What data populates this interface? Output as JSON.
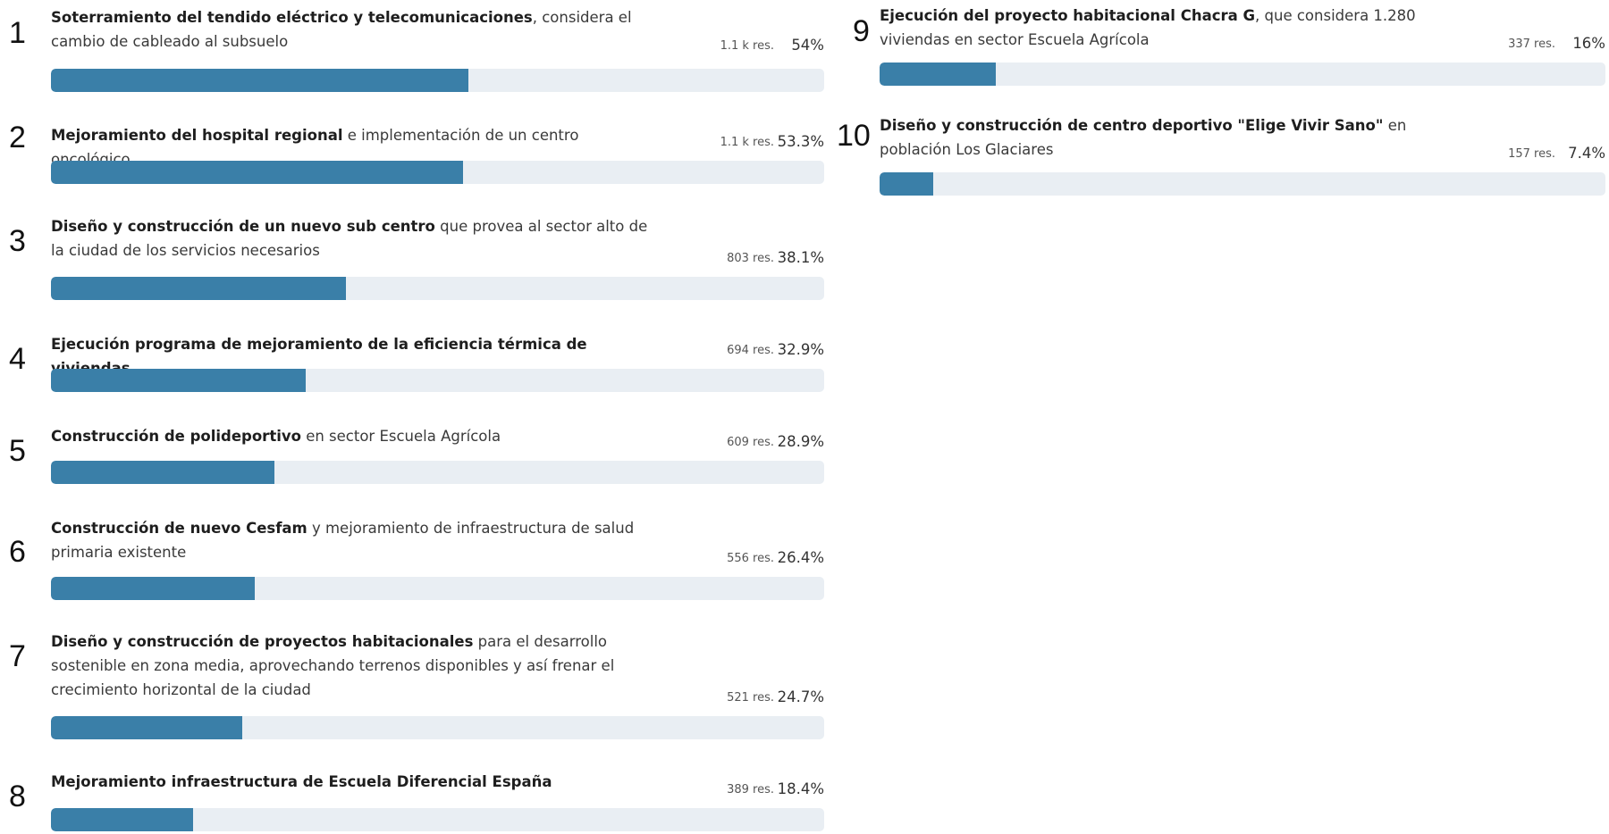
{
  "chart_data": {
    "type": "bar",
    "items": [
      {
        "rank": "1",
        "bold": "Soterramiento del tendido eléctrico y telecomunicaciones",
        "rest": ", considera el cambio de cableado al subsuelo",
        "responses": "1.1 k res.",
        "percent_label": "54%",
        "value": 54
      },
      {
        "rank": "2",
        "bold": "Mejoramiento del hospital regional",
        "rest": " e implementación de un centro oncológico",
        "responses": "1.1 k res.",
        "percent_label": "53.3%",
        "value": 53.3
      },
      {
        "rank": "3",
        "bold": "Diseño y construcción de un nuevo sub centro",
        "rest": " que provea al sector alto de la ciudad de los servicios necesarios",
        "responses": "803 res.",
        "percent_label": "38.1%",
        "value": 38.1
      },
      {
        "rank": "4",
        "bold": "Ejecución programa de mejoramiento de la eficiencia térmica de viviendas",
        "rest": "",
        "responses": "694 res.",
        "percent_label": "32.9%",
        "value": 32.9
      },
      {
        "rank": "5",
        "bold": "Construcción de polideportivo",
        "rest": " en sector Escuela Agrícola",
        "responses": "609 res.",
        "percent_label": "28.9%",
        "value": 28.9
      },
      {
        "rank": "6",
        "bold": "Construcción de nuevo Cesfam",
        "rest": " y mejoramiento de infraestructura de salud primaria existente",
        "responses": "556 res.",
        "percent_label": "26.4%",
        "value": 26.4
      },
      {
        "rank": "7",
        "bold": "Diseño y construcción de proyectos habitacionales",
        "rest": " para el desarrollo sostenible en zona media, aprovechando terrenos disponibles y así frenar el crecimiento horizontal de la ciudad",
        "responses": "521 res.",
        "percent_label": "24.7%",
        "value": 24.7
      },
      {
        "rank": "8",
        "bold": "Mejoramiento infraestructura de Escuela Diferencial España",
        "rest": "",
        "responses": "389 res.",
        "percent_label": "18.4%",
        "value": 18.4
      },
      {
        "rank": "9",
        "bold": "Ejecución del proyecto habitacional Chacra G",
        "rest": ", que considera 1.280 viviendas en sector Escuela Agrícola",
        "responses": "337 res.",
        "percent_label": "16%",
        "value": 16
      },
      {
        "rank": "10",
        "bold": "Diseño y construcción de centro deportivo \"Elige Vivir Sano\"",
        "rest": " en población Los Glaciares",
        "responses": "157 res.",
        "percent_label": "7.4%",
        "value": 7.4
      }
    ],
    "xlim": [
      0,
      100
    ],
    "colors": {
      "fill": "#3a7fa8",
      "track": "#e9eef3"
    }
  }
}
